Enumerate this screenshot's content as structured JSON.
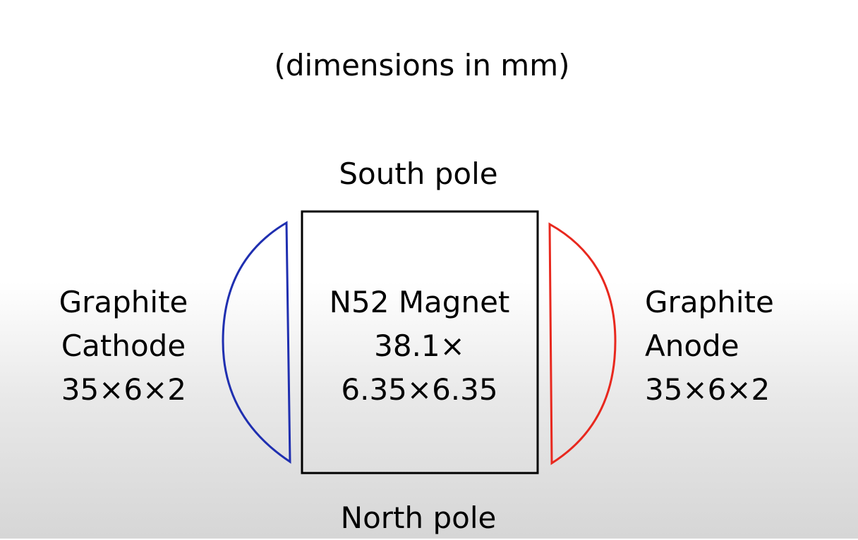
{
  "title": "(dimensions in mm)",
  "magnet": {
    "top_label": "South pole",
    "bottom_label": "North pole",
    "lines": [
      "N52 Magnet",
      "38.1×",
      "6.35×6.35"
    ]
  },
  "cathode": {
    "lines": [
      "Graphite",
      "Cathode",
      "35×6×2"
    ],
    "color": "#1f2fb0"
  },
  "anode": {
    "lines": [
      "Graphite",
      "Anode",
      "35×6×2"
    ],
    "color": "#e8281e"
  }
}
